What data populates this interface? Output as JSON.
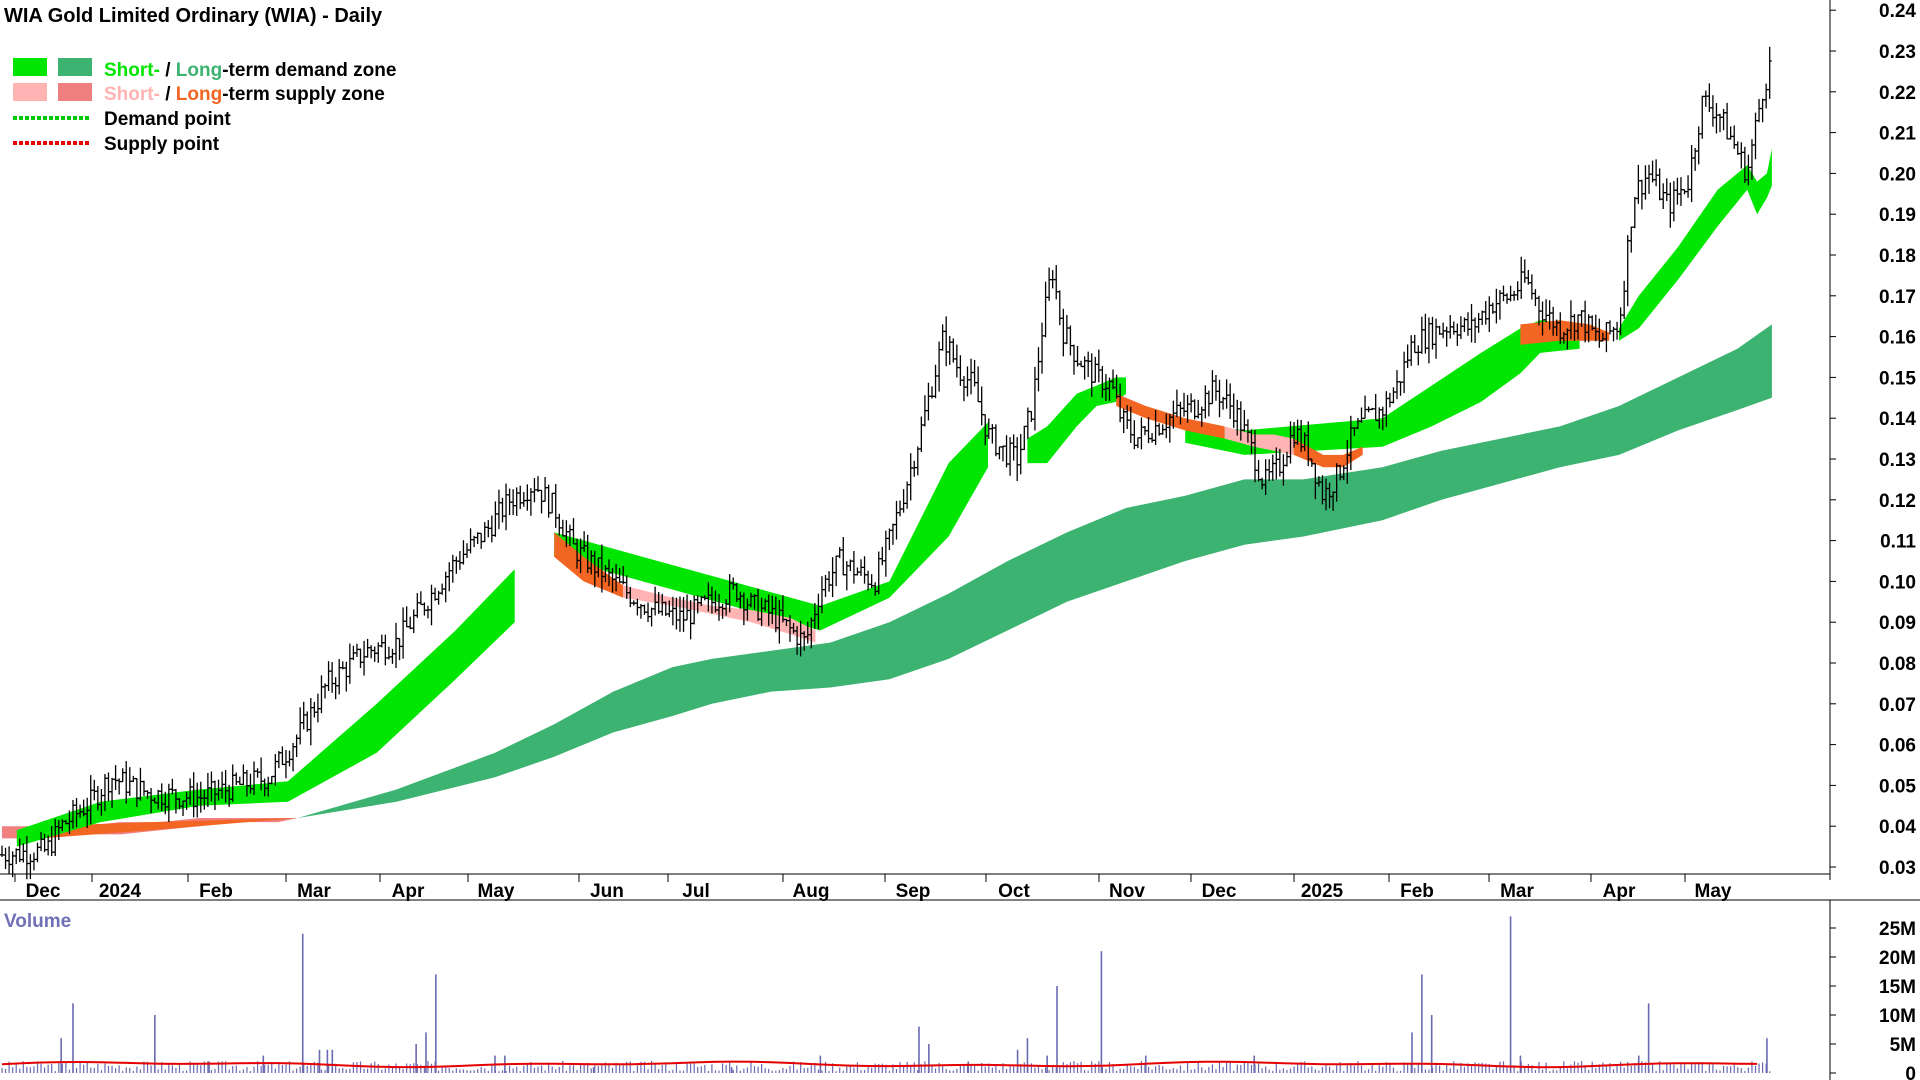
{
  "chart_data": {
    "type": "line",
    "title": "WIA Gold Limited Ordinary (WIA) - Daily",
    "legend": {
      "placement": "top-left",
      "demand_zone": {
        "short": "Short-",
        "sep": " / ",
        "long": "Long",
        "suffix": "-term demand zone"
      },
      "supply_zone": {
        "short": "Short-",
        "sep": " / ",
        "long": "Long",
        "suffix": "-term supply zone"
      },
      "demand_point": "Demand point",
      "supply_point": "Supply point"
    },
    "colors": {
      "short_demand": "#00e600",
      "long_demand": "#3cb371",
      "short_supply": "#ffb3b3",
      "long_supply": "#f08080",
      "bridge_supply": "#f26522",
      "demand_point": "#00cc00",
      "supply_point": "#e60000",
      "volume_bar": "#6a6ab0",
      "volume_avg": "#e60000",
      "price_bar": "#000000"
    },
    "x_labels": [
      "Dec",
      "2024",
      "Feb",
      "Mar",
      "Apr",
      "May",
      "Jun",
      "Jul",
      "Aug",
      "Sep",
      "Oct",
      "Nov",
      "Dec",
      "2025",
      "Feb",
      "Mar",
      "Apr",
      "May"
    ],
    "y_ticks": [
      "0.03",
      "0.04",
      "0.05",
      "0.06",
      "0.07",
      "0.08",
      "0.09",
      "0.10",
      "0.11",
      "0.12",
      "0.13",
      "0.14",
      "0.15",
      "0.16",
      "0.17",
      "0.18",
      "0.19",
      "0.20",
      "0.21",
      "0.22",
      "0.23",
      "0.24"
    ],
    "ylim": [
      0.03,
      0.24
    ],
    "price_path": [
      [
        0,
        0.033
      ],
      [
        45,
        0.034
      ],
      [
        60,
        0.04
      ],
      [
        90,
        0.046
      ],
      [
        110,
        0.052
      ],
      [
        150,
        0.048
      ],
      [
        200,
        0.047
      ],
      [
        240,
        0.05
      ],
      [
        270,
        0.052
      ],
      [
        300,
        0.062
      ],
      [
        330,
        0.075
      ],
      [
        370,
        0.083
      ],
      [
        400,
        0.085
      ],
      [
        430,
        0.095
      ],
      [
        460,
        0.105
      ],
      [
        490,
        0.112
      ],
      [
        515,
        0.12
      ],
      [
        540,
        0.124
      ],
      [
        560,
        0.118
      ],
      [
        580,
        0.108
      ],
      [
        600,
        0.104
      ],
      [
        630,
        0.098
      ],
      [
        660,
        0.093
      ],
      [
        690,
        0.091
      ],
      [
        720,
        0.095
      ],
      [
        745,
        0.098
      ],
      [
        760,
        0.094
      ],
      [
        780,
        0.092
      ],
      [
        800,
        0.088
      ],
      [
        815,
        0.085
      ],
      [
        830,
        0.098
      ],
      [
        850,
        0.105
      ],
      [
        870,
        0.102
      ],
      [
        885,
        0.1
      ],
      [
        900,
        0.11
      ],
      [
        915,
        0.122
      ],
      [
        930,
        0.135
      ],
      [
        945,
        0.15
      ],
      [
        955,
        0.16
      ],
      [
        970,
        0.152
      ],
      [
        985,
        0.148
      ],
      [
        1000,
        0.136
      ],
      [
        1015,
        0.132
      ],
      [
        1030,
        0.13
      ],
      [
        1045,
        0.143
      ],
      [
        1055,
        0.162
      ],
      [
        1065,
        0.177
      ],
      [
        1075,
        0.162
      ],
      [
        1090,
        0.155
      ],
      [
        1110,
        0.15
      ],
      [
        1125,
        0.148
      ],
      [
        1135,
        0.14
      ],
      [
        1150,
        0.135
      ],
      [
        1170,
        0.138
      ],
      [
        1190,
        0.141
      ],
      [
        1210,
        0.143
      ],
      [
        1230,
        0.147
      ],
      [
        1250,
        0.142
      ],
      [
        1265,
        0.134
      ],
      [
        1280,
        0.124
      ],
      [
        1295,
        0.128
      ],
      [
        1310,
        0.137
      ],
      [
        1325,
        0.132
      ],
      [
        1340,
        0.121
      ],
      [
        1355,
        0.126
      ],
      [
        1370,
        0.136
      ],
      [
        1385,
        0.14
      ],
      [
        1400,
        0.142
      ],
      [
        1415,
        0.148
      ],
      [
        1430,
        0.158
      ],
      [
        1450,
        0.161
      ],
      [
        1470,
        0.163
      ],
      [
        1490,
        0.162
      ],
      [
        1510,
        0.168
      ],
      [
        1530,
        0.17
      ],
      [
        1545,
        0.174
      ],
      [
        1560,
        0.167
      ],
      [
        1580,
        0.162
      ],
      [
        1600,
        0.165
      ],
      [
        1620,
        0.159
      ],
      [
        1640,
        0.163
      ],
      [
        1655,
        0.195
      ],
      [
        1670,
        0.2
      ],
      [
        1690,
        0.192
      ],
      [
        1710,
        0.198
      ],
      [
        1725,
        0.218
      ],
      [
        1740,
        0.215
      ],
      [
        1755,
        0.208
      ],
      [
        1770,
        0.2
      ],
      [
        1785,
        0.22
      ],
      [
        1795,
        0.228
      ]
    ],
    "short_demand_zone": {
      "x": [
        15,
        100,
        200,
        290,
        380,
        460,
        520,
        560,
        830,
        900,
        960,
        1000,
        1040,
        1060,
        1090,
        1110,
        1130,
        1140,
        1200,
        1260,
        1400,
        1450,
        1500,
        1540,
        1560,
        1600,
        1640,
        1660,
        1700,
        1740,
        1770,
        1780,
        1790,
        1795
      ],
      "upper": [
        0.039,
        0.046,
        0.049,
        0.051,
        0.07,
        0.088,
        0.103,
        0.112,
        0.094,
        0.1,
        0.129,
        0.139,
        0.135,
        0.138,
        0.146,
        0.148,
        0.15,
        0.15,
        0.139,
        0.137,
        0.14,
        0.148,
        0.156,
        0.162,
        0.164,
        0.163,
        0.162,
        0.17,
        0.182,
        0.196,
        0.202,
        0.198,
        0.2,
        0.206
      ],
      "lower": [
        0.035,
        0.041,
        0.045,
        0.046,
        0.058,
        0.076,
        0.09,
        0.106,
        0.088,
        0.096,
        0.111,
        0.128,
        0.129,
        0.129,
        0.138,
        0.143,
        0.144,
        0.146,
        0.134,
        0.131,
        0.133,
        0.138,
        0.144,
        0.151,
        0.156,
        0.157,
        0.159,
        0.162,
        0.174,
        0.187,
        0.196,
        0.19,
        0.194,
        0.197
      ]
    },
    "long_demand_zone": {
      "x": [
        300,
        400,
        500,
        560,
        620,
        680,
        720,
        780,
        840,
        900,
        960,
        1020,
        1080,
        1140,
        1200,
        1260,
        1320,
        1400,
        1460,
        1520,
        1580,
        1640,
        1700,
        1760,
        1795
      ],
      "upper": [
        0.042,
        0.049,
        0.058,
        0.065,
        0.073,
        0.079,
        0.081,
        0.083,
        0.085,
        0.09,
        0.097,
        0.105,
        0.112,
        0.118,
        0.121,
        0.125,
        0.125,
        0.128,
        0.132,
        0.135,
        0.138,
        0.143,
        0.15,
        0.157,
        0.163
      ],
      "lower": [
        0.042,
        0.046,
        0.052,
        0.057,
        0.063,
        0.067,
        0.07,
        0.073,
        0.074,
        0.076,
        0.081,
        0.088,
        0.095,
        0.1,
        0.105,
        0.109,
        0.111,
        0.115,
        0.12,
        0.124,
        0.128,
        0.131,
        0.137,
        0.142,
        0.145
      ]
    },
    "short_supply_zone": {
      "x": [
        560,
        590,
        630,
        680,
        720,
        760,
        800,
        825,
        1130,
        1160,
        1200,
        1240,
        1270,
        1290,
        1310,
        1340,
        1360,
        1380,
        1540,
        1580,
        1610,
        1630
      ],
      "upper": [
        0.112,
        0.106,
        0.099,
        0.096,
        0.094,
        0.093,
        0.091,
        0.088,
        0.146,
        0.143,
        0.14,
        0.138,
        0.136,
        0.136,
        0.135,
        0.131,
        0.131,
        0.133,
        0.163,
        0.164,
        0.163,
        0.161
      ],
      "lower": [
        0.106,
        0.1,
        0.096,
        0.094,
        0.092,
        0.09,
        0.087,
        0.085,
        0.143,
        0.14,
        0.137,
        0.135,
        0.133,
        0.132,
        0.131,
        0.128,
        0.128,
        0.131,
        0.158,
        0.159,
        0.159,
        0.159
      ]
    },
    "long_supply_zone": {
      "x": [
        0,
        40,
        80,
        120,
        160,
        200,
        240,
        280,
        300
      ],
      "upper": [
        0.04,
        0.04,
        0.04,
        0.041,
        0.041,
        0.042,
        0.042,
        0.042,
        0.042
      ],
      "lower": [
        0.037,
        0.037,
        0.038,
        0.038,
        0.039,
        0.04,
        0.041,
        0.041,
        0.042
      ]
    },
    "volume": {
      "label": "Volume",
      "y_ticks": [
        "0",
        "5M",
        "10M",
        "15M",
        "20M",
        "25M"
      ],
      "ylim": [
        0,
        27
      ],
      "average_level": 1.5,
      "spikes": [
        [
          60,
          6
        ],
        [
          72,
          12
        ],
        [
          155,
          10
        ],
        [
          210,
          2
        ],
        [
          265,
          3
        ],
        [
          305,
          24
        ],
        [
          322,
          4
        ],
        [
          330,
          4
        ],
        [
          335,
          4
        ],
        [
          420,
          5
        ],
        [
          430,
          7
        ],
        [
          440,
          17
        ],
        [
          500,
          3
        ],
        [
          510,
          3
        ],
        [
          600,
          1
        ],
        [
          740,
          1
        ],
        [
          830,
          3
        ],
        [
          930,
          8
        ],
        [
          940,
          5
        ],
        [
          980,
          2
        ],
        [
          1030,
          4
        ],
        [
          1040,
          6
        ],
        [
          1060,
          3
        ],
        [
          1070,
          15
        ],
        [
          1115,
          21
        ],
        [
          1160,
          3
        ],
        [
          1270,
          3
        ],
        [
          1430,
          7
        ],
        [
          1440,
          17
        ],
        [
          1450,
          10
        ],
        [
          1530,
          27
        ],
        [
          1540,
          3
        ],
        [
          1660,
          3
        ],
        [
          1670,
          12
        ],
        [
          1790,
          6
        ]
      ]
    }
  }
}
